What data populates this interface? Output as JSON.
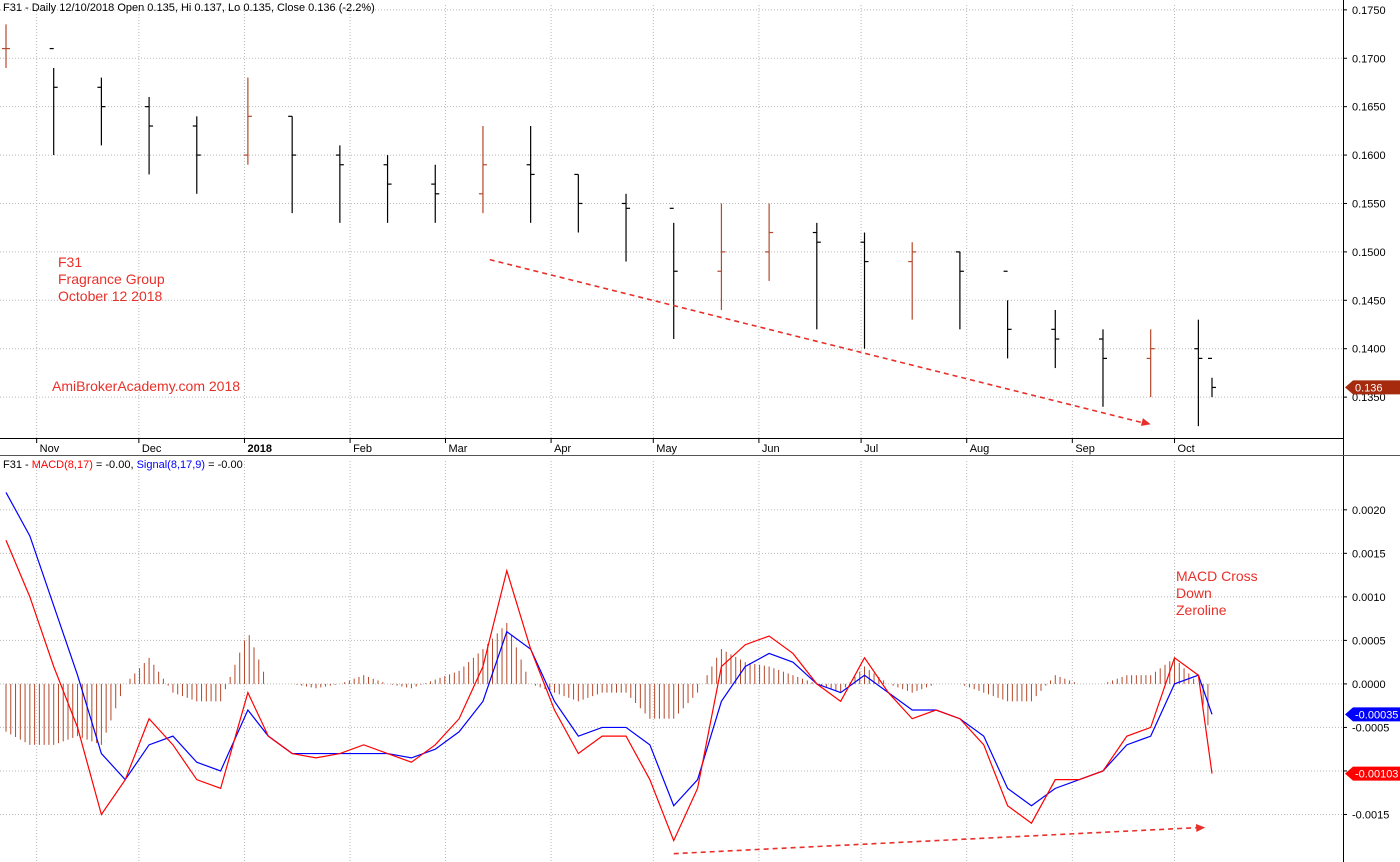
{
  "colors": {
    "bar_up": "#b5482a",
    "bar_down": "#000000",
    "macd": "#ff0000",
    "signal": "#0000ff",
    "hist": "#b5482a",
    "annotation": "#e8302a",
    "grid": "#b8b8b8",
    "price_badge": "#a52a0e",
    "signal_badge": "#0000ff",
    "macd_badge": "#ff0000"
  },
  "price_panel": {
    "header": "F31 - Daily 12/10/2018 Open 0.135, Hi 0.137, Lo 0.135, Close 0.136 (-2.2%)",
    "last_price_label": "0.136"
  },
  "macd_panel": {
    "header_prefix": "F31 - ",
    "header_macd": "MACD(8,17)",
    "header_macd_val": " = -0.00, ",
    "header_signal": "Signal(8,17,9)",
    "header_signal_val": " = -0.00",
    "signal_label": "-0.00035",
    "macd_label": "-0.00103"
  },
  "annotations": {
    "stock_code": "F31",
    "company": "Fragrance Group",
    "date": "October 12 2018",
    "watermark": "AmiBrokerAcademy.com  2018",
    "macd_note": [
      "MACD Cross",
      "Down",
      "Zeroline"
    ]
  },
  "chart_data": [
    {
      "type": "ohlc",
      "title": "F31 - Daily 12/10/2018 Open 0.135, Hi 0.137, Lo 0.135, Close 0.136 (-2.2%)",
      "y_tick_labels": [
        "0.1350",
        "0.1400",
        "0.1450",
        "0.1500",
        "0.1550",
        "0.1600",
        "0.1650",
        "0.1700",
        "0.1750"
      ],
      "ylim": [
        0.1315,
        0.1755
      ],
      "x_tick_labels": [
        "Nov",
        "Dec",
        "2018",
        "Feb",
        "Mar",
        "Apr",
        "May",
        "Jun",
        "Jul",
        "Aug",
        "Sep",
        "Oct"
      ],
      "grid": true,
      "x": [
        "2017-10-23",
        "2017-11-06",
        "2017-11-20",
        "2017-12-04",
        "2017-12-18",
        "2018-01-02",
        "2018-01-15",
        "2018-01-29",
        "2018-02-12",
        "2018-02-26",
        "2018-03-12",
        "2018-03-26",
        "2018-04-09",
        "2018-04-23",
        "2018-05-07",
        "2018-05-21",
        "2018-06-04",
        "2018-06-18",
        "2018-07-02",
        "2018-07-16",
        "2018-07-30",
        "2018-08-13",
        "2018-08-27",
        "2018-09-10",
        "2018-09-24",
        "2018-10-08",
        "2018-10-12"
      ],
      "close": [
        0.171,
        0.167,
        0.165,
        0.163,
        0.16,
        0.164,
        0.16,
        0.159,
        0.157,
        0.156,
        0.159,
        0.158,
        0.155,
        0.1545,
        0.148,
        0.15,
        0.152,
        0.151,
        0.149,
        0.15,
        0.148,
        0.142,
        0.141,
        0.139,
        0.14,
        0.139,
        0.136
      ],
      "high": [
        0.1735,
        0.169,
        0.168,
        0.166,
        0.164,
        0.168,
        0.164,
        0.161,
        0.16,
        0.159,
        0.163,
        0.163,
        0.158,
        0.156,
        0.153,
        0.155,
        0.155,
        0.153,
        0.152,
        0.151,
        0.15,
        0.145,
        0.144,
        0.142,
        0.142,
        0.143,
        0.137
      ],
      "low": [
        0.169,
        0.16,
        0.161,
        0.158,
        0.156,
        0.159,
        0.154,
        0.153,
        0.153,
        0.153,
        0.154,
        0.153,
        0.152,
        0.149,
        0.141,
        0.144,
        0.147,
        0.142,
        0.14,
        0.143,
        0.142,
        0.139,
        0.138,
        0.134,
        0.135,
        0.132,
        0.135
      ],
      "trendline": {
        "from": {
          "x": "2018-03-14",
          "y": 0.1492
        },
        "to": {
          "x": "2018-09-24",
          "y": 0.1322
        },
        "style": "dashed",
        "color": "#e8302a"
      }
    },
    {
      "type": "line",
      "title": "F31 - MACD(8,17) = -0.00, Signal(8,17,9) = -0.00",
      "y_tick_labels": [
        "-0.0015",
        "-0.0010",
        "-0.0005",
        "0.0000",
        "0.0005",
        "0.0010",
        "0.0015",
        "0.0020"
      ],
      "ylim": [
        -0.002,
        0.0024
      ],
      "grid": true,
      "series": [
        {
          "name": "MACD(8,17)",
          "x": [
            "2017-10-23",
            "2017-10-30",
            "2017-11-06",
            "2017-11-13",
            "2017-11-20",
            "2017-11-27",
            "2017-12-04",
            "2017-12-11",
            "2017-12-18",
            "2017-12-25",
            "2018-01-02",
            "2018-01-08",
            "2018-01-15",
            "2018-01-22",
            "2018-01-29",
            "2018-02-05",
            "2018-02-12",
            "2018-02-19",
            "2018-02-26",
            "2018-03-05",
            "2018-03-12",
            "2018-03-19",
            "2018-03-26",
            "2018-04-02",
            "2018-04-09",
            "2018-04-16",
            "2018-04-23",
            "2018-04-30",
            "2018-05-07",
            "2018-05-14",
            "2018-05-21",
            "2018-05-28",
            "2018-06-04",
            "2018-06-11",
            "2018-06-18",
            "2018-06-25",
            "2018-07-02",
            "2018-07-09",
            "2018-07-16",
            "2018-07-23",
            "2018-07-30",
            "2018-08-06",
            "2018-08-13",
            "2018-08-20",
            "2018-08-27",
            "2018-09-03",
            "2018-09-10",
            "2018-09-17",
            "2018-09-24",
            "2018-10-01",
            "2018-10-08",
            "2018-10-12"
          ],
          "values": [
            0.00165,
            0.001,
            0.0002,
            -0.0005,
            -0.0015,
            -0.0011,
            -0.0004,
            -0.0007,
            -0.0011,
            -0.0012,
            -0.0001,
            -0.0006,
            -0.0008,
            -0.00085,
            -0.0008,
            -0.0007,
            -0.0008,
            -0.0009,
            -0.0007,
            -0.0004,
            0.0002,
            0.0013,
            0.0004,
            -0.0003,
            -0.0008,
            -0.0006,
            -0.0006,
            -0.0011,
            -0.0018,
            -0.0012,
            0.0002,
            0.00045,
            0.00055,
            0.00035,
            0.0,
            -0.0002,
            0.0003,
            -0.0001,
            -0.0004,
            -0.0003,
            -0.0004,
            -0.0007,
            -0.0014,
            -0.0016,
            -0.0011,
            -0.0011,
            -0.001,
            -0.0006,
            -0.0005,
            0.0003,
            0.0001,
            -0.00103
          ]
        },
        {
          "name": "Signal(8,17,9)",
          "x": [
            "2017-10-23",
            "2017-10-30",
            "2017-11-06",
            "2017-11-13",
            "2017-11-20",
            "2017-11-27",
            "2017-12-04",
            "2017-12-11",
            "2017-12-18",
            "2017-12-25",
            "2018-01-02",
            "2018-01-08",
            "2018-01-15",
            "2018-01-22",
            "2018-01-29",
            "2018-02-05",
            "2018-02-12",
            "2018-02-19",
            "2018-02-26",
            "2018-03-05",
            "2018-03-12",
            "2018-03-19",
            "2018-03-26",
            "2018-04-02",
            "2018-04-09",
            "2018-04-16",
            "2018-04-23",
            "2018-04-30",
            "2018-05-07",
            "2018-05-14",
            "2018-05-21",
            "2018-05-28",
            "2018-06-04",
            "2018-06-11",
            "2018-06-18",
            "2018-06-25",
            "2018-07-02",
            "2018-07-09",
            "2018-07-16",
            "2018-07-23",
            "2018-07-30",
            "2018-08-06",
            "2018-08-13",
            "2018-08-20",
            "2018-08-27",
            "2018-09-03",
            "2018-09-10",
            "2018-09-17",
            "2018-09-24",
            "2018-10-01",
            "2018-10-08",
            "2018-10-12"
          ],
          "values": [
            0.0022,
            0.0017,
            0.0009,
            0.0001,
            -0.0008,
            -0.0011,
            -0.0007,
            -0.0006,
            -0.0009,
            -0.001,
            -0.0003,
            -0.0006,
            -0.0008,
            -0.0008,
            -0.0008,
            -0.0008,
            -0.0008,
            -0.00085,
            -0.00075,
            -0.00055,
            -0.0002,
            0.0006,
            0.0004,
            -0.0002,
            -0.0006,
            -0.0005,
            -0.0005,
            -0.0007,
            -0.0014,
            -0.0011,
            -0.0002,
            0.0002,
            0.00035,
            0.00025,
            0.0,
            -0.0001,
            0.0001,
            -0.0001,
            -0.0003,
            -0.0003,
            -0.0004,
            -0.0006,
            -0.0012,
            -0.0014,
            -0.0012,
            -0.0011,
            -0.001,
            -0.0007,
            -0.0006,
            0.0,
            0.0001,
            -0.00035
          ]
        }
      ],
      "histogram": {
        "name": "MACD - Signal",
        "x": [
          "2017-10-23",
          "2017-10-30",
          "2017-11-06",
          "2017-11-13",
          "2017-11-20",
          "2017-11-27",
          "2017-12-04",
          "2017-12-11",
          "2017-12-18",
          "2017-12-25",
          "2018-01-02",
          "2018-01-08",
          "2018-01-15",
          "2018-01-22",
          "2018-01-29",
          "2018-02-05",
          "2018-02-12",
          "2018-02-19",
          "2018-02-26",
          "2018-03-05",
          "2018-03-12",
          "2018-03-19",
          "2018-03-26",
          "2018-04-02",
          "2018-04-09",
          "2018-04-16",
          "2018-04-23",
          "2018-04-30",
          "2018-05-07",
          "2018-05-14",
          "2018-05-21",
          "2018-05-28",
          "2018-06-04",
          "2018-06-11",
          "2018-06-18",
          "2018-06-25",
          "2018-07-02",
          "2018-07-09",
          "2018-07-16",
          "2018-07-23",
          "2018-07-30",
          "2018-08-06",
          "2018-08-13",
          "2018-08-20",
          "2018-08-27",
          "2018-09-03",
          "2018-09-10",
          "2018-09-17",
          "2018-09-24",
          "2018-10-01",
          "2018-10-08",
          "2018-10-12"
        ],
        "values": [
          -0.00055,
          -0.0007,
          -0.0007,
          -0.0006,
          -0.0007,
          0.0,
          0.0003,
          -0.0001,
          -0.0002,
          -0.0002,
          0.0006,
          0.0,
          0.0,
          -5e-05,
          0.0,
          0.0001,
          0.0,
          -5e-05,
          5e-05,
          0.00015,
          0.0004,
          0.0007,
          0.0,
          -0.0001,
          -0.0002,
          -0.0001,
          -0.0001,
          -0.0004,
          -0.0004,
          -0.0001,
          0.0004,
          0.00025,
          0.0002,
          0.0001,
          0.0,
          -0.0001,
          0.0002,
          0.0,
          -0.0001,
          0.0,
          0.0,
          -0.0001,
          -0.0002,
          -0.0002,
          0.0001,
          0.0,
          0.0,
          0.0001,
          0.0001,
          0.0003,
          0.0,
          -0.00068
        ]
      },
      "trendline": {
        "from": {
          "x": "2018-05-07",
          "y": -0.00195
        },
        "to": {
          "x": "2018-10-10",
          "y": -0.00165
        },
        "style": "dashed",
        "color": "#e8302a"
      }
    }
  ]
}
